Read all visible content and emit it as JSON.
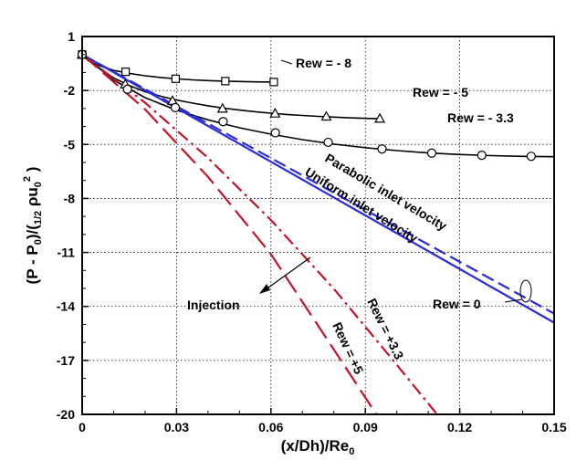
{
  "chart_data": {
    "type": "line",
    "title": "",
    "xlabel": "(x/Dh)/Re",
    "xlabel_sub": "0",
    "ylabel_parts": [
      "(P - P",
      "0",
      ")/(",
      "1/2",
      " ρu",
      "0",
      "2",
      " )"
    ],
    "xlim": [
      0,
      0.15
    ],
    "ylim": [
      -20,
      1
    ],
    "x_ticks": [
      0,
      0.03,
      0.06,
      0.09,
      0.12,
      0.15
    ],
    "x_tick_labels": [
      "0",
      "0.03",
      "0.06",
      "0.09",
      "0.12",
      "0.15"
    ],
    "y_ticks": [
      1,
      -2,
      -5,
      -8,
      -11,
      -14,
      -17,
      -20
    ],
    "y_tick_labels": [
      "1",
      "-2",
      "-5",
      "-8",
      "-11",
      "-14",
      "-17",
      "-20"
    ],
    "grid": true,
    "series": [
      {
        "name": "Rew = - 8",
        "color": "#000000",
        "style": "solid",
        "marker": "square",
        "x": [
          0,
          0.002,
          0.005,
          0.01,
          0.015,
          0.02,
          0.025,
          0.03,
          0.035,
          0.04,
          0.045,
          0.05,
          0.055,
          0.06
        ],
        "y": [
          0,
          -0.35,
          -0.6,
          -0.88,
          -1.05,
          -1.18,
          -1.28,
          -1.35,
          -1.41,
          -1.45,
          -1.48,
          -1.5,
          -1.52,
          -1.53
        ],
        "marker_x": [
          0,
          0.0138,
          0.0297,
          0.0455,
          0.0609
        ],
        "marker_y": [
          0,
          -0.96,
          -1.35,
          -1.48,
          -1.53
        ]
      },
      {
        "name": "Rew = - 5",
        "color": "#000000",
        "style": "solid",
        "marker": "triangle",
        "x": [
          0,
          0.005,
          0.01,
          0.015,
          0.02,
          0.025,
          0.03,
          0.035,
          0.04,
          0.045,
          0.05,
          0.055,
          0.06,
          0.065,
          0.07,
          0.075,
          0.08,
          0.085,
          0.09,
          0.095
        ],
        "y": [
          0,
          -0.7,
          -1.3,
          -1.73,
          -2.07,
          -2.32,
          -2.53,
          -2.7,
          -2.85,
          -2.98,
          -3.09,
          -3.18,
          -3.26,
          -3.33,
          -3.39,
          -3.44,
          -3.48,
          -3.52,
          -3.55,
          -3.57
        ],
        "marker_x": [
          0,
          0.0137,
          0.0287,
          0.0446,
          0.0613,
          0.0776,
          0.0946
        ],
        "marker_y": [
          0,
          -1.65,
          -2.57,
          -3.0,
          -3.27,
          -3.44,
          -3.56
        ]
      },
      {
        "name": "Rew = - 3.3",
        "color": "#000000",
        "style": "solid",
        "marker": "circle",
        "x": [
          0,
          0.01,
          0.02,
          0.03,
          0.04,
          0.05,
          0.06,
          0.07,
          0.08,
          0.09,
          0.1,
          0.11,
          0.12,
          0.13,
          0.14,
          0.15
        ],
        "y": [
          0,
          -1.42,
          -2.4,
          -3.1,
          -3.63,
          -4.07,
          -4.43,
          -4.73,
          -4.98,
          -5.18,
          -5.34,
          -5.47,
          -5.56,
          -5.62,
          -5.66,
          -5.68
        ],
        "marker_x": [
          0,
          0.0144,
          0.0296,
          0.0448,
          0.0614,
          0.0782,
          0.0953,
          0.1111,
          0.127,
          0.1427
        ],
        "marker_y": [
          0,
          -1.93,
          -2.95,
          -3.73,
          -4.35,
          -4.88,
          -5.25,
          -5.48,
          -5.6,
          -5.66
        ]
      },
      {
        "name": "Parabolic inlet velocity",
        "color": "#2b2bd8",
        "style": "dashed",
        "marker": "none",
        "x": [
          0,
          0.15
        ],
        "y": [
          0,
          -14.4
        ]
      },
      {
        "name": "Uniform inlet velocity",
        "color": "#2b2bd8",
        "style": "solid",
        "marker": "none",
        "x": [
          0,
          0.15
        ],
        "y": [
          0,
          -14.9
        ]
      },
      {
        "name": "Rew = +3.3",
        "color": "#c0142a",
        "style": "dashdot",
        "marker": "none",
        "x": [
          0,
          0.02,
          0.04,
          0.06,
          0.08,
          0.1,
          0.1128
        ],
        "y": [
          0,
          -2.68,
          -5.75,
          -9.2,
          -13.02,
          -17.25,
          -20
        ]
      },
      {
        "name": "Rew = +5",
        "color": "#c0142a",
        "style": "longdash",
        "marker": "none",
        "x": [
          0,
          0.02,
          0.04,
          0.06,
          0.08,
          0.0935
        ],
        "y": [
          0,
          -3.05,
          -6.8,
          -11.1,
          -16.4,
          -20
        ]
      }
    ],
    "annotations": [
      "Rew = - 8",
      "Rew = - 5",
      "Rew = - 3.3",
      "Parabolic inlet velocity",
      "Uniform inlet velocity",
      "Rew = 0",
      "Injection",
      "Rew = +3.3",
      "Rew = +5"
    ]
  }
}
